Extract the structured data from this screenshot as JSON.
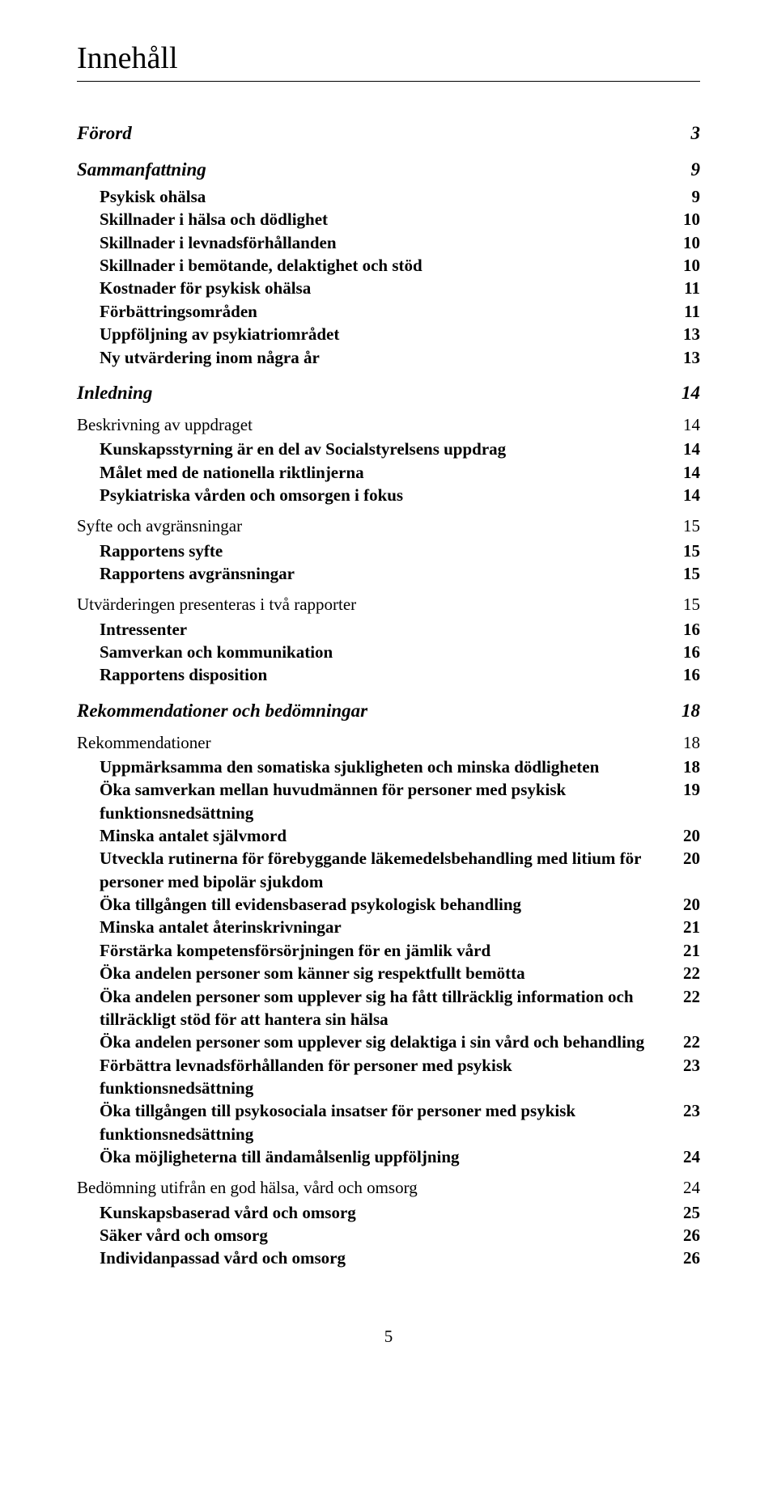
{
  "title": "Innehåll",
  "footer_page": "5",
  "entries": [
    {
      "level": 0,
      "label": "Förord",
      "page": "3"
    },
    {
      "level": 0,
      "label": "Sammanfattning",
      "page": "9"
    },
    {
      "level": 2,
      "label": "Psykisk ohälsa",
      "page": "9"
    },
    {
      "level": 2,
      "label": "Skillnader i hälsa och dödlighet",
      "page": "10"
    },
    {
      "level": 2,
      "label": "Skillnader i levnadsförhållanden",
      "page": "10"
    },
    {
      "level": 2,
      "label": "Skillnader i bemötande, delaktighet och stöd",
      "page": "10"
    },
    {
      "level": 2,
      "label": "Kostnader för psykisk ohälsa",
      "page": "11"
    },
    {
      "level": 2,
      "label": "Förbättringsområden",
      "page": "11"
    },
    {
      "level": 2,
      "label": "Uppföljning av psykiatriområdet",
      "page": "13"
    },
    {
      "level": 2,
      "label": "Ny utvärdering inom några år",
      "page": "13"
    },
    {
      "level": 0,
      "label": "Inledning",
      "page": "14"
    },
    {
      "level": 1,
      "label": "Beskrivning av uppdraget",
      "page": "14"
    },
    {
      "level": 2,
      "label": "Kunskapsstyrning är en del av Socialstyrelsens uppdrag",
      "page": "14"
    },
    {
      "level": 2,
      "label": "Målet med de nationella riktlinjerna",
      "page": "14"
    },
    {
      "level": 2,
      "label": "Psykiatriska vården och omsorgen i fokus",
      "page": "14"
    },
    {
      "level": 1,
      "label": "Syfte och avgränsningar",
      "page": "15"
    },
    {
      "level": 2,
      "label": "Rapportens syfte",
      "page": "15"
    },
    {
      "level": 2,
      "label": "Rapportens avgränsningar",
      "page": "15"
    },
    {
      "level": 1,
      "label": "Utvärderingen presenteras i två rapporter",
      "page": "15"
    },
    {
      "level": 2,
      "label": "Intressenter",
      "page": "16"
    },
    {
      "level": 2,
      "label": "Samverkan och kommunikation",
      "page": "16"
    },
    {
      "level": 2,
      "label": "Rapportens disposition",
      "page": "16"
    },
    {
      "level": 0,
      "label": "Rekommendationer och bedömningar",
      "page": "18"
    },
    {
      "level": 1,
      "label": "Rekommendationer",
      "page": "18"
    },
    {
      "level": 2,
      "label": "Uppmärksamma den somatiska sjukligheten  och minska dödligheten",
      "page": "18"
    },
    {
      "level": 2,
      "label": "Öka samverkan mellan huvudmännen för personer  med psykisk funktionsnedsättning",
      "page": "19"
    },
    {
      "level": 2,
      "label": "Minska antalet självmord",
      "page": "20"
    },
    {
      "level": 2,
      "label": "Utveckla rutinerna för förebyggande läkemedelsbehandling med litium för personer med bipolär sjukdom",
      "page": "20"
    },
    {
      "level": 2,
      "label": "Öka tillgången till evidensbaserad psykologisk behandling",
      "page": "20"
    },
    {
      "level": 2,
      "label": "Minska antalet återinskrivningar",
      "page": "21"
    },
    {
      "level": 2,
      "label": "Förstärka kompetensförsörjningen för en jämlik vård",
      "page": "21"
    },
    {
      "level": 2,
      "label": "Öka andelen personer som känner sig respektfullt bemötta",
      "page": "22"
    },
    {
      "level": 2,
      "label": "Öka andelen personer som upplever sig ha fått tillräcklig information och tillräckligt stöd för att hantera sin hälsa",
      "page": "22"
    },
    {
      "level": 2,
      "label": "Öka andelen personer som upplever sig delaktiga  i sin vård och behandling",
      "page": "22"
    },
    {
      "level": 2,
      "label": "Förbättra levnadsförhållanden för personer  med psykisk funktionsnedsättning",
      "page": "23"
    },
    {
      "level": 2,
      "label": "Öka tillgången till psykosociala insatser för personer  med psykisk funktionsnedsättning",
      "page": "23"
    },
    {
      "level": 2,
      "label": "Öka möjligheterna till ändamålsenlig uppföljning",
      "page": "24"
    },
    {
      "level": 1,
      "label": "Bedömning utifrån en god hälsa,  vård och omsorg",
      "page": "24"
    },
    {
      "level": 2,
      "label": "Kunskapsbaserad vård och omsorg",
      "page": "25"
    },
    {
      "level": 2,
      "label": "Säker vård och omsorg",
      "page": "26"
    },
    {
      "level": 2,
      "label": "Individanpassad vård och omsorg",
      "page": "26"
    }
  ]
}
